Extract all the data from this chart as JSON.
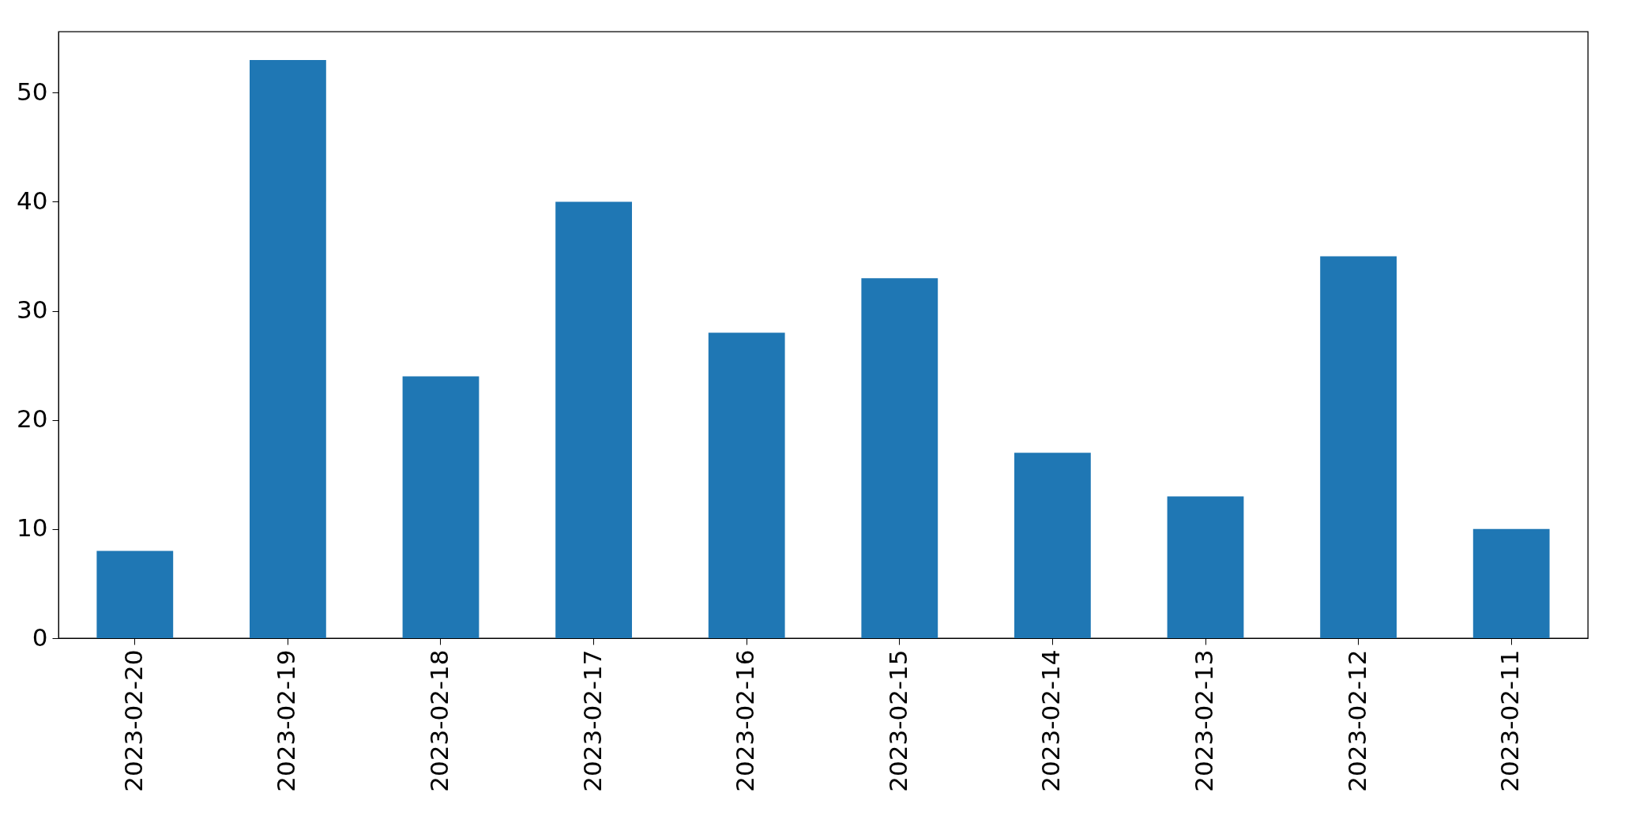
{
  "chart_data": {
    "type": "bar",
    "categories": [
      "2023-02-20",
      "2023-02-19",
      "2023-02-18",
      "2023-02-17",
      "2023-02-16",
      "2023-02-15",
      "2023-02-14",
      "2023-02-13",
      "2023-02-12",
      "2023-02-11"
    ],
    "values": [
      8,
      53,
      24,
      40,
      28,
      33,
      17,
      13,
      35,
      10
    ],
    "color": "#1f77b4",
    "ylim": [
      0,
      55.6
    ],
    "yticks": [
      0,
      10,
      20,
      30,
      40,
      50
    ],
    "grid": false
  }
}
